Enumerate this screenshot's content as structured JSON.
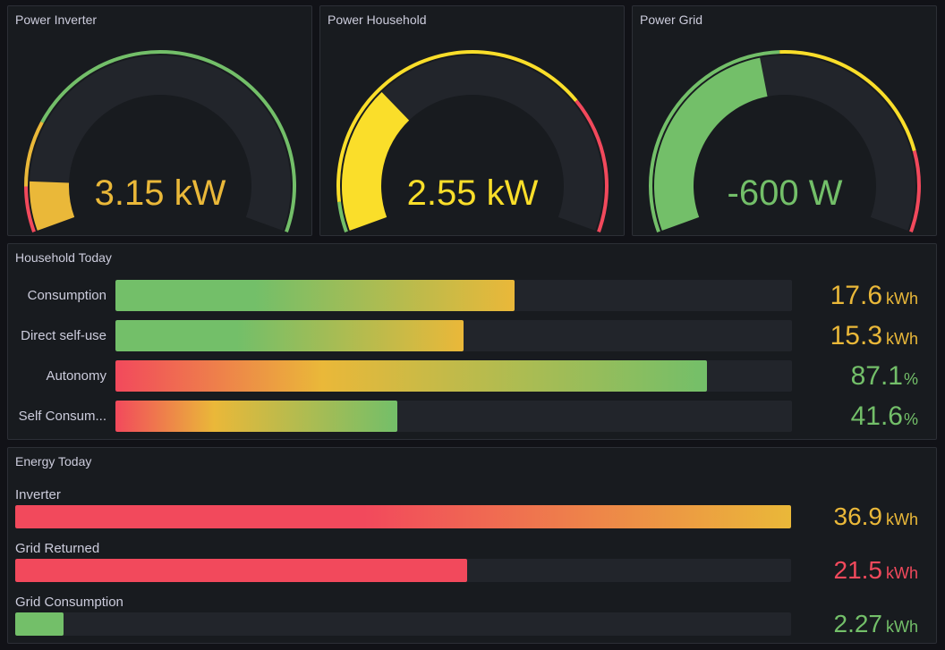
{
  "colors": {
    "green": "#73bf69",
    "yellow": "#fade2a",
    "orange": "#eab839",
    "red": "#f2495c",
    "track": "#22252b"
  },
  "gauges": [
    {
      "title": "Power Inverter",
      "value_text": "3.15 kW",
      "fill_fraction": 0.1,
      "value_color": "#eab839",
      "fill_color": "#eab839"
    },
    {
      "title": "Power Household",
      "value_text": "2.55 kW",
      "fill_fraction": 0.3,
      "value_color": "#fade2a",
      "fill_color": "#fade2a"
    },
    {
      "title": "Power Grid",
      "value_text": "-600 W",
      "fill_fraction": 0.45,
      "value_color": "#73bf69",
      "fill_color": "#73bf69"
    }
  ],
  "household_today": {
    "title": "Household Today",
    "rows": [
      {
        "label": "Consumption",
        "value": "17.6",
        "unit": "kWh",
        "fraction": 0.59,
        "gradient": "gy",
        "value_color": "#eab839"
      },
      {
        "label": "Direct self-use",
        "value": "15.3",
        "unit": "kWh",
        "fraction": 0.514,
        "gradient": "gy",
        "value_color": "#eab839"
      },
      {
        "label": "Autonomy",
        "value": "87.1",
        "unit": "%",
        "fraction": 0.874,
        "gradient": "rg",
        "value_color": "#73bf69"
      },
      {
        "label": "Self Consum...",
        "value": "41.6",
        "unit": "%",
        "fraction": 0.417,
        "gradient": "rg",
        "value_color": "#73bf69"
      }
    ]
  },
  "energy_today": {
    "title": "Energy Today",
    "rows": [
      {
        "label": "Inverter",
        "value": "36.9",
        "unit": "kWh",
        "fraction": 1.0,
        "gradient": "ro",
        "value_color": "#eab839"
      },
      {
        "label": "Grid Returned",
        "value": "21.5",
        "unit": "kWh",
        "fraction": 0.583,
        "gradient": "solidred",
        "value_color": "#f2495c"
      },
      {
        "label": "Grid Consumption",
        "value": "2.27",
        "unit": "kWh",
        "fraction": 0.062,
        "gradient": "solidgreen",
        "value_color": "#73bf69"
      }
    ]
  }
}
